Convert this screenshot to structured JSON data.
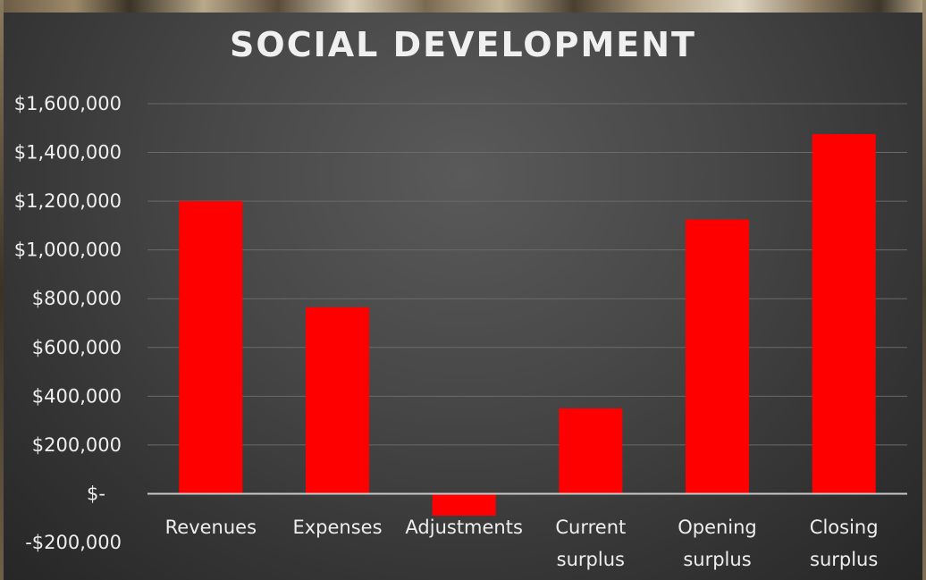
{
  "chart_data": {
    "type": "bar",
    "title": "SOCIAL DEVELOPMENT",
    "categories": [
      [
        "Revenues"
      ],
      [
        "Expenses"
      ],
      [
        "Adjustments"
      ],
      [
        "Current",
        "surplus"
      ],
      [
        "Opening",
        "surplus"
      ],
      [
        "Closing",
        "surplus"
      ]
    ],
    "values": [
      1200000,
      765000,
      -90000,
      350000,
      1125000,
      1475000
    ],
    "ylim": [
      -200000,
      1600000
    ],
    "y_ticks": [
      {
        "value": 1600000,
        "label": "$1,600,000"
      },
      {
        "value": 1400000,
        "label": "$1,400,000"
      },
      {
        "value": 1200000,
        "label": "$1,200,000"
      },
      {
        "value": 1000000,
        "label": "$1,000,000"
      },
      {
        "value": 800000,
        "label": "$800,000"
      },
      {
        "value": 600000,
        "label": "$600,000"
      },
      {
        "value": 400000,
        "label": "$400,000"
      },
      {
        "value": 200000,
        "label": "$200,000"
      },
      {
        "value": 0,
        "label": "$-"
      },
      {
        "value": -200000,
        "label": "-$200,000"
      }
    ],
    "grid": true,
    "bar_color": "#ff0000",
    "xlabel": "",
    "ylabel": ""
  }
}
